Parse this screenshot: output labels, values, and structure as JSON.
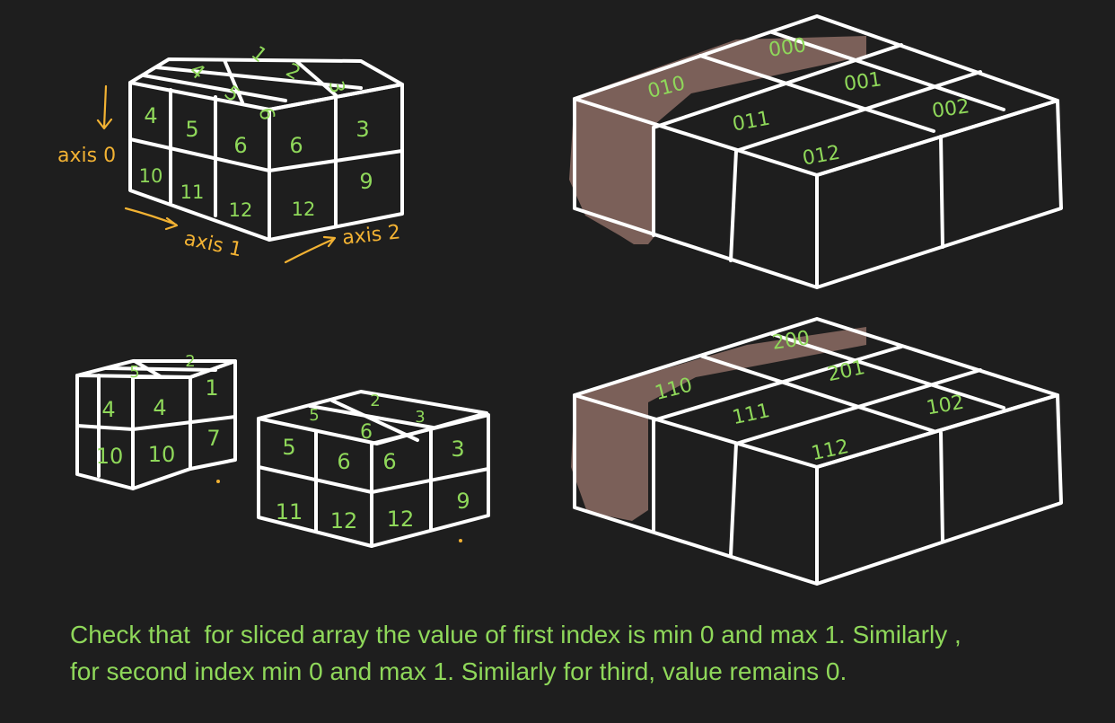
{
  "colors": {
    "background": "#1e1e1e",
    "green_text": "#8fd85a",
    "axis_labels": "#f2b233",
    "highlight": "#7b6059",
    "lines": "#ffffff"
  },
  "cube_main": {
    "axis_labels": {
      "axis0": "axis 0",
      "axis1": "axis 1",
      "axis2": "axis 2"
    },
    "top": [
      "4",
      "1",
      "5",
      "2",
      "6",
      "3"
    ],
    "front_row1": [
      "4",
      "5",
      "6"
    ],
    "front_row2": [
      "10",
      "11",
      "12"
    ],
    "side_row1": [
      "6",
      "3"
    ],
    "side_row2": [
      "12",
      "9"
    ]
  },
  "cube_small_a": {
    "top": [
      "5",
      "2"
    ],
    "front_row1": [
      "4",
      "4",
      "1"
    ],
    "front_row2": [
      "10",
      "10",
      "7"
    ]
  },
  "cube_small_b": {
    "top": [
      "5",
      "2",
      "6",
      "3"
    ],
    "front_row1": [
      "5",
      "6",
      "6",
      "3"
    ],
    "front_row2": [
      "11",
      "12",
      "12",
      "9"
    ]
  },
  "index_block_top": [
    "000",
    "010",
    "001",
    "011",
    "002",
    "012"
  ],
  "index_block_bottom": [
    "200",
    "110",
    "201",
    "111",
    "102",
    "112"
  ],
  "caption": {
    "line1": "Check that  for sliced array the value of first index is min 0 and max 1. Similarly ,",
    "line2": "for second index min 0 and max 1. Similarly for third, value remains 0."
  }
}
